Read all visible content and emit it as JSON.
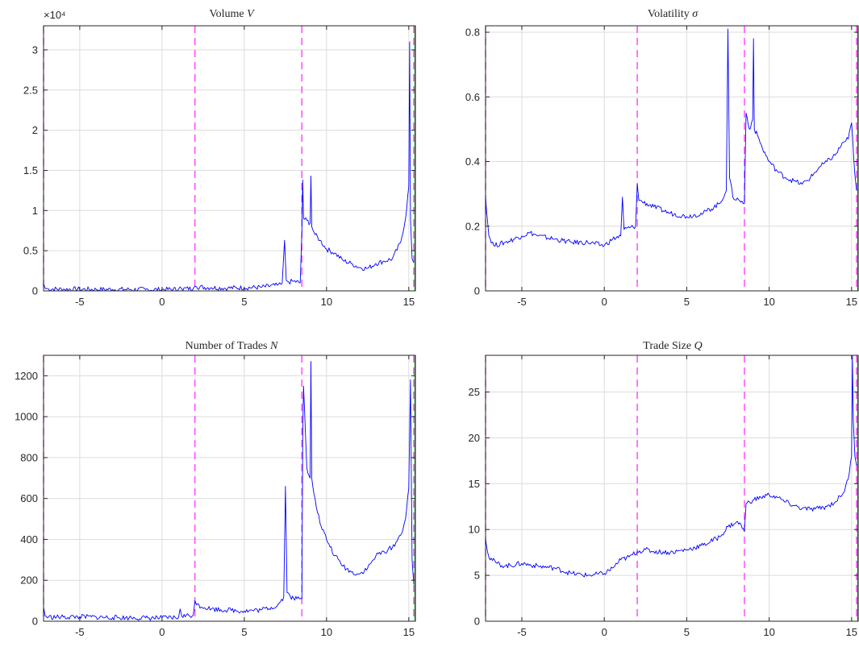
{
  "figure": {
    "panel_titles": [
      "Volume",
      "Volatility",
      "Number of Trades",
      "Trade Size"
    ],
    "panel_symbols": [
      "V",
      "σ",
      "N",
      "Q"
    ]
  },
  "chart_data": [
    {
      "type": "line",
      "title": "Volume V",
      "xlim": [
        -7.2,
        15.4
      ],
      "ylim": [
        0,
        33000
      ],
      "xticks": [
        "-5",
        "0",
        "5",
        "10",
        "15"
      ],
      "yticks": [
        "0",
        "0.5",
        "1",
        "1.5",
        "2",
        "2.5",
        "3"
      ],
      "y_multiplier": "×10⁴",
      "grid": true,
      "vlines": [
        -7.2,
        2.0,
        8.5,
        15.3
      ],
      "series": [
        {
          "x": [
            -7.2,
            -7.1,
            -6.9,
            -6,
            -5,
            -4,
            -3,
            -2,
            -1,
            0,
            1,
            1.1,
            1.2,
            1.9,
            2.0,
            2.1,
            3,
            4,
            5,
            6,
            7,
            7.3,
            7.45,
            7.55,
            7.7,
            8,
            8.4,
            8.5,
            8.55,
            8.6,
            8.8,
            9.0,
            9.05,
            9.1,
            9.3,
            9.6,
            10,
            10.5,
            11,
            11.5,
            12,
            12.5,
            13,
            13.5,
            14,
            14.5,
            14.8,
            15.0,
            15.05,
            15.1,
            15.2,
            15.3
          ],
          "y": [
            900,
            300,
            250,
            200,
            200,
            180,
            180,
            170,
            160,
            160,
            200,
            500,
            250,
            300,
            600,
            500,
            400,
            350,
            400,
            450,
            700,
            900,
            6300,
            1300,
            1100,
            1200,
            1000,
            7500,
            13800,
            9000,
            8800,
            8400,
            14300,
            8000,
            7000,
            6300,
            5200,
            4700,
            3800,
            3400,
            2900,
            2800,
            3400,
            3700,
            4000,
            6000,
            9000,
            13000,
            31000,
            9000,
            4000,
            3500
          ]
        }
      ]
    },
    {
      "type": "line",
      "title": "Volatility σ",
      "xlim": [
        -7.2,
        15.4
      ],
      "ylim": [
        0,
        0.82
      ],
      "xticks": [
        "-5",
        "0",
        "5",
        "10",
        "15"
      ],
      "yticks": [
        "0",
        "0.2",
        "0.4",
        "0.6",
        "0.8"
      ],
      "grid": true,
      "vlines": [
        -7.2,
        2.0,
        8.5,
        15.3
      ],
      "series": [
        {
          "x": [
            -7.2,
            -7.0,
            -6.7,
            -6.0,
            -5.0,
            -4.5,
            -4.0,
            -3.0,
            -2.0,
            -1.0,
            0.0,
            0.5,
            1.0,
            1.1,
            1.2,
            1.9,
            2.0,
            2.1,
            3.0,
            4.0,
            5.0,
            6.0,
            7.0,
            7.4,
            7.5,
            7.6,
            7.8,
            8.2,
            8.5,
            8.6,
            8.8,
            9.0,
            9.05,
            9.1,
            9.3,
            9.6,
            10.0,
            10.5,
            11.0,
            11.5,
            12.0,
            12.5,
            13.0,
            13.5,
            14.0,
            14.5,
            14.8,
            15.0,
            15.2,
            15.3
          ],
          "y": [
            0.29,
            0.17,
            0.14,
            0.15,
            0.17,
            0.18,
            0.17,
            0.16,
            0.15,
            0.15,
            0.14,
            0.16,
            0.17,
            0.29,
            0.19,
            0.2,
            0.33,
            0.28,
            0.26,
            0.24,
            0.23,
            0.24,
            0.27,
            0.31,
            0.81,
            0.35,
            0.29,
            0.28,
            0.27,
            0.55,
            0.5,
            0.53,
            0.78,
            0.5,
            0.48,
            0.44,
            0.4,
            0.37,
            0.35,
            0.34,
            0.33,
            0.35,
            0.38,
            0.4,
            0.42,
            0.46,
            0.47,
            0.52,
            0.36,
            0.31
          ]
        }
      ]
    },
    {
      "type": "line",
      "title": "Number of Trades N",
      "xlim": [
        -7.2,
        15.4
      ],
      "ylim": [
        0,
        1300
      ],
      "xticks": [
        "-5",
        "0",
        "5",
        "10",
        "15"
      ],
      "yticks": [
        "0",
        "200",
        "400",
        "600",
        "800",
        "1000",
        "1200"
      ],
      "grid": true,
      "vlines": [
        -7.2,
        2.0,
        8.5,
        15.3
      ],
      "series": [
        {
          "x": [
            -7.2,
            -7.1,
            -6.9,
            -6.0,
            -5.0,
            -4.0,
            -3.0,
            -2.0,
            -1.0,
            0.0,
            1.0,
            1.1,
            1.2,
            1.9,
            2.0,
            2.1,
            3.0,
            4.0,
            5.0,
            6.0,
            7.0,
            7.4,
            7.5,
            7.6,
            7.8,
            8.2,
            8.5,
            8.55,
            8.6,
            8.8,
            9.0,
            9.05,
            9.1,
            9.3,
            9.6,
            10.0,
            10.5,
            11.0,
            11.5,
            12.0,
            12.5,
            13.0,
            13.5,
            14.0,
            14.5,
            14.8,
            15.0,
            15.1,
            15.2,
            15.3
          ],
          "y": [
            70,
            25,
            20,
            20,
            22,
            20,
            18,
            17,
            16,
            16,
            18,
            60,
            25,
            30,
            100,
            80,
            60,
            55,
            50,
            55,
            75,
            120,
            660,
            140,
            120,
            110,
            110,
            900,
            1150,
            750,
            700,
            1270,
            700,
            600,
            480,
            400,
            320,
            270,
            240,
            230,
            260,
            320,
            340,
            360,
            420,
            500,
            650,
            1180,
            300,
            180
          ]
        }
      ]
    },
    {
      "type": "line",
      "title": "Trade Size Q",
      "xlim": [
        -7.2,
        15.4
      ],
      "ylim": [
        0,
        29
      ],
      "xticks": [
        "-5",
        "0",
        "5",
        "10",
        "15"
      ],
      "yticks": [
        "0",
        "5",
        "10",
        "15",
        "20",
        "25"
      ],
      "grid": true,
      "vlines": [
        -7.2,
        2.0,
        8.5,
        15.3
      ],
      "series": [
        {
          "x": [
            -7.2,
            -7.0,
            -6.5,
            -6.0,
            -5.0,
            -4.0,
            -3.0,
            -2.0,
            -1.0,
            0.0,
            0.5,
            1.0,
            1.5,
            2.0,
            2.5,
            3.0,
            4.0,
            5.0,
            6.0,
            7.0,
            7.5,
            8.0,
            8.3,
            8.5,
            8.6,
            9.0,
            9.5,
            10.0,
            10.5,
            11.0,
            11.5,
            12.0,
            12.5,
            13.0,
            13.5,
            14.0,
            14.5,
            14.8,
            15.0,
            15.05,
            15.1,
            15.2,
            15.3
          ],
          "y": [
            9.0,
            7.0,
            6.3,
            6.0,
            6.3,
            6.0,
            5.8,
            5.2,
            5.0,
            5.2,
            5.8,
            6.7,
            7.0,
            7.6,
            7.8,
            7.6,
            7.5,
            7.8,
            8.3,
            9.2,
            10.3,
            10.8,
            10.5,
            9.8,
            12.8,
            13.2,
            13.5,
            13.8,
            13.5,
            13.0,
            12.6,
            12.3,
            12.2,
            12.3,
            12.5,
            13.0,
            14.0,
            15.5,
            18.0,
            29.0,
            22.0,
            18.0,
            17.0
          ]
        }
      ]
    }
  ]
}
